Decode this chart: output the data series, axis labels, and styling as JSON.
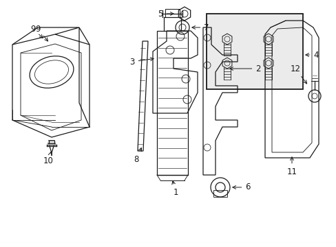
{
  "background_color": "#ffffff",
  "line_color": "#1a1a1a",
  "lw": 0.9,
  "figsize": [
    4.89,
    3.6
  ],
  "dpi": 100,
  "xlim": [
    0,
    489
  ],
  "ylim": [
    0,
    360
  ]
}
